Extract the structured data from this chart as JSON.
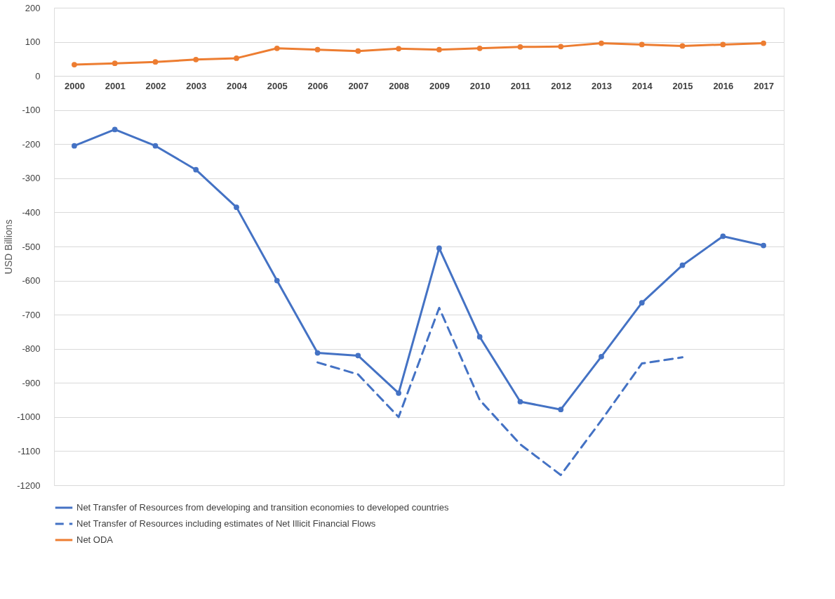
{
  "chart_data": {
    "type": "line",
    "categories": [
      "2000",
      "2001",
      "2002",
      "2003",
      "2004",
      "2005",
      "2006",
      "2007",
      "2008",
      "2009",
      "2010",
      "2011",
      "2012",
      "2013",
      "2014",
      "2015",
      "2016",
      "2017"
    ],
    "series": [
      {
        "name": "Net Transfer of Resources from developing and transition economies to developed countries",
        "color": "#4472c4",
        "marker": "circle",
        "line_style": "solid",
        "values": [
          -205,
          -157,
          -205,
          -275,
          -385,
          -600,
          -812,
          -820,
          -930,
          -505,
          -765,
          -955,
          -978,
          -823,
          -665,
          -555,
          -470,
          -497
        ]
      },
      {
        "name": "Net Transfer of Resources including estimates of Net Illicit Financial Flows",
        "color": "#4472c4",
        "marker": "none",
        "line_style": "dashed",
        "values": [
          null,
          null,
          null,
          null,
          null,
          null,
          -840,
          -875,
          -1000,
          -680,
          -950,
          -1080,
          -1170,
          -1010,
          -843,
          -825,
          null,
          null
        ]
      },
      {
        "name": "Net ODA",
        "color": "#ed7d31",
        "marker": "circle",
        "line_style": "solid",
        "values": [
          33,
          37,
          41,
          48,
          52,
          81,
          77,
          73,
          80,
          77,
          81,
          85,
          86,
          96,
          92,
          88,
          92,
          96
        ]
      }
    ],
    "ylabel": "USD Billions",
    "ylim": [
      -1200,
      200
    ],
    "yticks": [
      -1200,
      -1100,
      -1000,
      -900,
      -800,
      -700,
      -600,
      -500,
      -400,
      -300,
      -200,
      -100,
      0,
      100,
      200
    ],
    "grid": "y",
    "legend": "bottom"
  }
}
